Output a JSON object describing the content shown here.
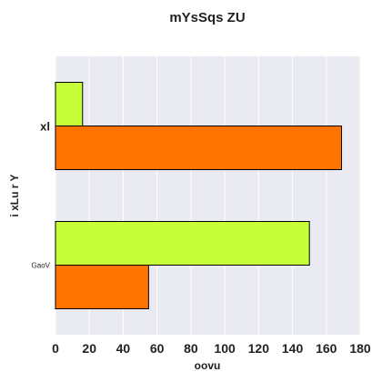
{
  "chart_data": {
    "type": "bar",
    "orientation": "horizontal",
    "title": "mYsSqs ZU",
    "xlabel": "oovu",
    "ylabel": "i xLu r  Y",
    "categories": [
      "xl",
      "GaoV"
    ],
    "series": [
      {
        "values": [
          16,
          150
        ],
        "color": "#c6ff3a"
      },
      {
        "values": [
          169,
          55
        ],
        "color": "#ff7400"
      }
    ],
    "xlim": [
      0,
      180
    ],
    "xticks": [
      "0",
      "20",
      "40",
      "60",
      "80",
      "100",
      "120",
      "140",
      "160",
      "180"
    ],
    "grid": true,
    "background": "#eaeaf2"
  }
}
